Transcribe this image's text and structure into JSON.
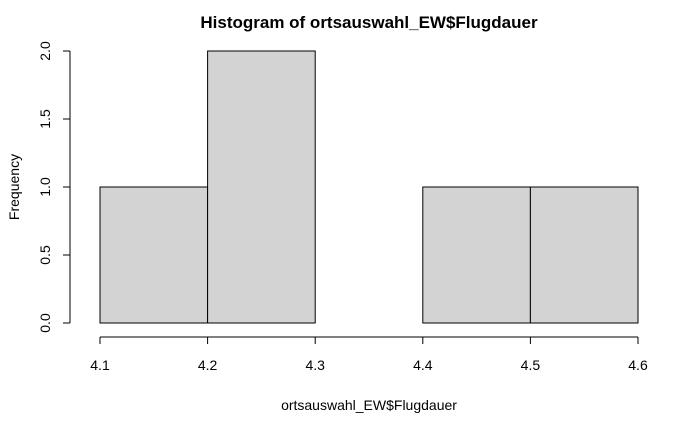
{
  "chart_data": {
    "type": "bar",
    "title": "Histogram of ortsauswahl_EW$Flugdauer",
    "xlabel": "ortsauswahl_EW$Flugdauer",
    "ylabel": "Frequency",
    "bins": [
      {
        "start": 4.1,
        "end": 4.2,
        "count": 1
      },
      {
        "start": 4.2,
        "end": 4.3,
        "count": 2
      },
      {
        "start": 4.3,
        "end": 4.4,
        "count": 0
      },
      {
        "start": 4.4,
        "end": 4.5,
        "count": 1
      },
      {
        "start": 4.5,
        "end": 4.6,
        "count": 1
      }
    ],
    "xlim": [
      4.1,
      4.6
    ],
    "ylim": [
      0,
      2
    ],
    "x_ticks": [
      "4.1",
      "4.2",
      "4.3",
      "4.4",
      "4.5",
      "4.6"
    ],
    "y_ticks": [
      "0.0",
      "0.5",
      "1.0",
      "1.5",
      "2.0"
    ],
    "bar_color": "#d3d3d3",
    "grid": false,
    "legend": "none"
  }
}
